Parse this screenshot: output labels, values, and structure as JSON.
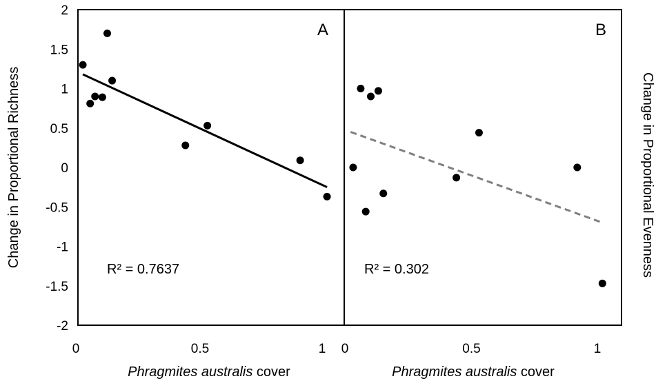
{
  "chart_data": [
    {
      "type": "scatter",
      "panel_label": "A",
      "xlabel_italic": "Phragmites australis",
      "xlabel_suffix": " cover",
      "ylabel": "Change in Proportional Richness",
      "xlim": [
        0,
        1.08
      ],
      "ylim": [
        -2,
        2
      ],
      "x_ticks": [
        "0",
        "0.5",
        "1"
      ],
      "y_ticks": [
        "2",
        "1.5",
        "1",
        "0.5",
        "0",
        "-0.5",
        "-1",
        "-1.5",
        "-2"
      ],
      "r2_label": "R² = 0.7637",
      "trendline": {
        "style": "solid",
        "color": "#000000",
        "x": [
          0.02,
          1.02
        ],
        "y": [
          1.18,
          -0.25
        ]
      },
      "points": [
        {
          "x": 0.02,
          "y": 1.3
        },
        {
          "x": 0.05,
          "y": 0.81
        },
        {
          "x": 0.07,
          "y": 0.9
        },
        {
          "x": 0.1,
          "y": 0.89
        },
        {
          "x": 0.12,
          "y": 1.7
        },
        {
          "x": 0.14,
          "y": 1.1
        },
        {
          "x": 0.44,
          "y": 0.28
        },
        {
          "x": 0.53,
          "y": 0.53
        },
        {
          "x": 0.91,
          "y": 0.09
        },
        {
          "x": 1.02,
          "y": -0.37
        }
      ]
    },
    {
      "type": "scatter",
      "panel_label": "B",
      "xlabel_italic": "Phragmites australis",
      "xlabel_suffix": " cover",
      "ylabel": "Change in Proportional Evenness",
      "xlim": [
        0,
        1.08
      ],
      "ylim": [
        -2,
        2
      ],
      "x_ticks": [
        "0",
        "0.5",
        "1"
      ],
      "r2_label": "R² = 0.302",
      "trendline": {
        "style": "dashed",
        "color": "#7f7f7f",
        "x": [
          0.02,
          1.02
        ],
        "y": [
          0.45,
          -0.7
        ]
      },
      "points": [
        {
          "x": 0.03,
          "y": 0.0
        },
        {
          "x": 0.06,
          "y": 1.0
        },
        {
          "x": 0.08,
          "y": -0.56
        },
        {
          "x": 0.1,
          "y": 0.9
        },
        {
          "x": 0.13,
          "y": 0.97
        },
        {
          "x": 0.15,
          "y": -0.33
        },
        {
          "x": 0.44,
          "y": -0.13
        },
        {
          "x": 0.53,
          "y": 0.44
        },
        {
          "x": 0.92,
          "y": 0.0
        },
        {
          "x": 1.02,
          "y": -1.47
        }
      ]
    }
  ]
}
